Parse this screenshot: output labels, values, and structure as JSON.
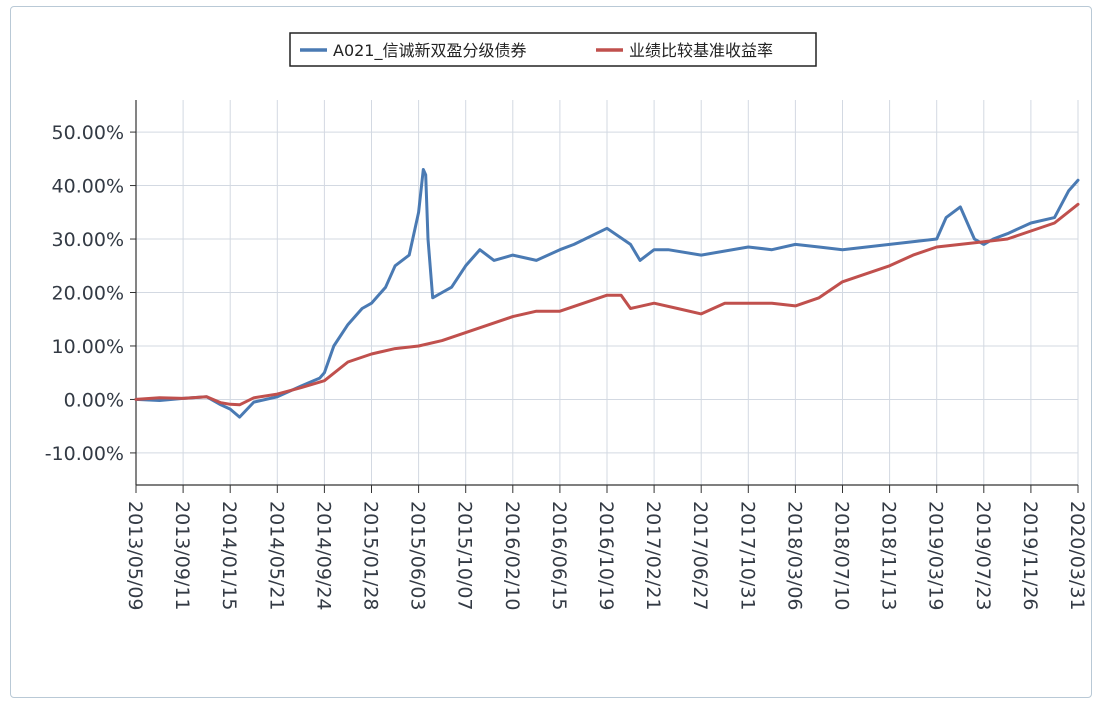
{
  "chart_data": {
    "type": "line",
    "title": "",
    "xlabel": "",
    "ylabel": "",
    "x_ticks": [
      "2013/05/09",
      "2013/09/11",
      "2014/01/15",
      "2014/05/21",
      "2014/09/24",
      "2015/01/28",
      "2015/06/03",
      "2015/10/07",
      "2016/02/10",
      "2016/06/15",
      "2016/10/19",
      "2017/02/21",
      "2017/06/27",
      "2017/10/31",
      "2018/03/06",
      "2018/07/10",
      "2018/11/13",
      "2019/03/19",
      "2019/07/23",
      "2019/11/26",
      "2020/03/31"
    ],
    "y_ticks": [
      "50.00%",
      "40.00%",
      "30.00%",
      "20.00%",
      "10.00%",
      "0.00%",
      "-10.00%"
    ],
    "ylim": [
      -16,
      56
    ],
    "grid": true,
    "legend_position": "top-center",
    "series": [
      {
        "name": "A021_信诚新双盈分级债券",
        "color": "#4a7ab3",
        "x": [
          0,
          0.5,
          1,
          1.5,
          1.8,
          2.0,
          2.2,
          2.5,
          3,
          3.5,
          3.9,
          4.0,
          4.2,
          4.5,
          4.8,
          5.0,
          5.3,
          5.5,
          5.8,
          6.0,
          6.1,
          6.15,
          6.2,
          6.3,
          6.5,
          6.7,
          7,
          7.3,
          7.6,
          8,
          8.5,
          9,
          9.3,
          10,
          10.5,
          10.7,
          11,
          11.3,
          12,
          13,
          13.5,
          14,
          14.5,
          15,
          16,
          17,
          17.2,
          17.5,
          17.8,
          18,
          18.2,
          18.5,
          19,
          19.5,
          19.8,
          20
        ],
        "values": [
          0,
          -0.2,
          0.2,
          0.5,
          -1,
          -1.8,
          -3.3,
          -0.5,
          0.5,
          2.5,
          4,
          5,
          10,
          14,
          17,
          18,
          21,
          25,
          27,
          35,
          43,
          42,
          30,
          19,
          20,
          21,
          25,
          28,
          26,
          27,
          26,
          28,
          29,
          32,
          29,
          26,
          28,
          28,
          27,
          28.5,
          28,
          29,
          28.5,
          28,
          29,
          30,
          34,
          36,
          30,
          29,
          30,
          31,
          33,
          34,
          39,
          41
        ]
      },
      {
        "name": "业绩比较基准收益率",
        "color": "#c0504d",
        "x": [
          0,
          0.5,
          1,
          1.5,
          1.8,
          2.0,
          2.2,
          2.5,
          3,
          3.5,
          4,
          4.5,
          5,
          5.5,
          6,
          6.5,
          7,
          7.5,
          8,
          8.5,
          9,
          9.5,
          10,
          10.3,
          10.5,
          11,
          11.5,
          12,
          12.5,
          13,
          13.5,
          14,
          14.5,
          15,
          15.5,
          16,
          16.5,
          17,
          17.5,
          18,
          18.5,
          19,
          19.5,
          20
        ],
        "values": [
          0,
          0.3,
          0.2,
          0.5,
          -0.6,
          -0.9,
          -1,
          0.3,
          1,
          2.2,
          3.5,
          7,
          8.5,
          9.5,
          10,
          11,
          12.5,
          14,
          15.5,
          16.5,
          16.5,
          18,
          19.5,
          19.5,
          17,
          18,
          17,
          16,
          18,
          18,
          18,
          17.5,
          19,
          22,
          23.5,
          25,
          27,
          28.5,
          29,
          29.5,
          30,
          31.5,
          33,
          36.5
        ]
      }
    ]
  }
}
